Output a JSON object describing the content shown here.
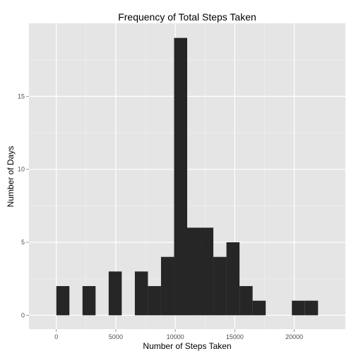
{
  "chart_data": {
    "type": "bar",
    "title": "Frequency of Total Steps Taken",
    "xlabel": "Number of Steps Taken",
    "ylabel": "Number of Days",
    "xlim": [
      -2300,
      24300
    ],
    "ylim": [
      -0.95,
      20
    ],
    "x_ticks": [
      0,
      5000,
      10000,
      15000,
      20000
    ],
    "x_tick_labels": [
      "0",
      "5000",
      "10000",
      "15000",
      "20000"
    ],
    "y_ticks": [
      0,
      5,
      10,
      15
    ],
    "y_tick_labels": [
      "0",
      "5",
      "10",
      "15"
    ],
    "bin_width": 1100,
    "bins": [
      {
        "start": 0,
        "end": 1100,
        "count": 2
      },
      {
        "start": 2200,
        "end": 3300,
        "count": 2
      },
      {
        "start": 4400,
        "end": 5500,
        "count": 3
      },
      {
        "start": 6600,
        "end": 7700,
        "count": 3
      },
      {
        "start": 7700,
        "end": 8800,
        "count": 2
      },
      {
        "start": 8800,
        "end": 9900,
        "count": 4
      },
      {
        "start": 9900,
        "end": 11000,
        "count": 19
      },
      {
        "start": 11000,
        "end": 12100,
        "count": 6
      },
      {
        "start": 12100,
        "end": 13200,
        "count": 6
      },
      {
        "start": 13200,
        "end": 14300,
        "count": 4
      },
      {
        "start": 14300,
        "end": 15400,
        "count": 5
      },
      {
        "start": 15400,
        "end": 16500,
        "count": 2
      },
      {
        "start": 16500,
        "end": 17600,
        "count": 1
      },
      {
        "start": 19800,
        "end": 20900,
        "count": 1
      },
      {
        "start": 20900,
        "end": 22000,
        "count": 1
      }
    ],
    "grid": true,
    "colors": {
      "panel_background": "#e5e5e5",
      "grid_major": "#ffffff",
      "grid_minor": "#f2f2f2",
      "bar_fill": "#262626",
      "tick_color": "#7f7f7f"
    }
  }
}
